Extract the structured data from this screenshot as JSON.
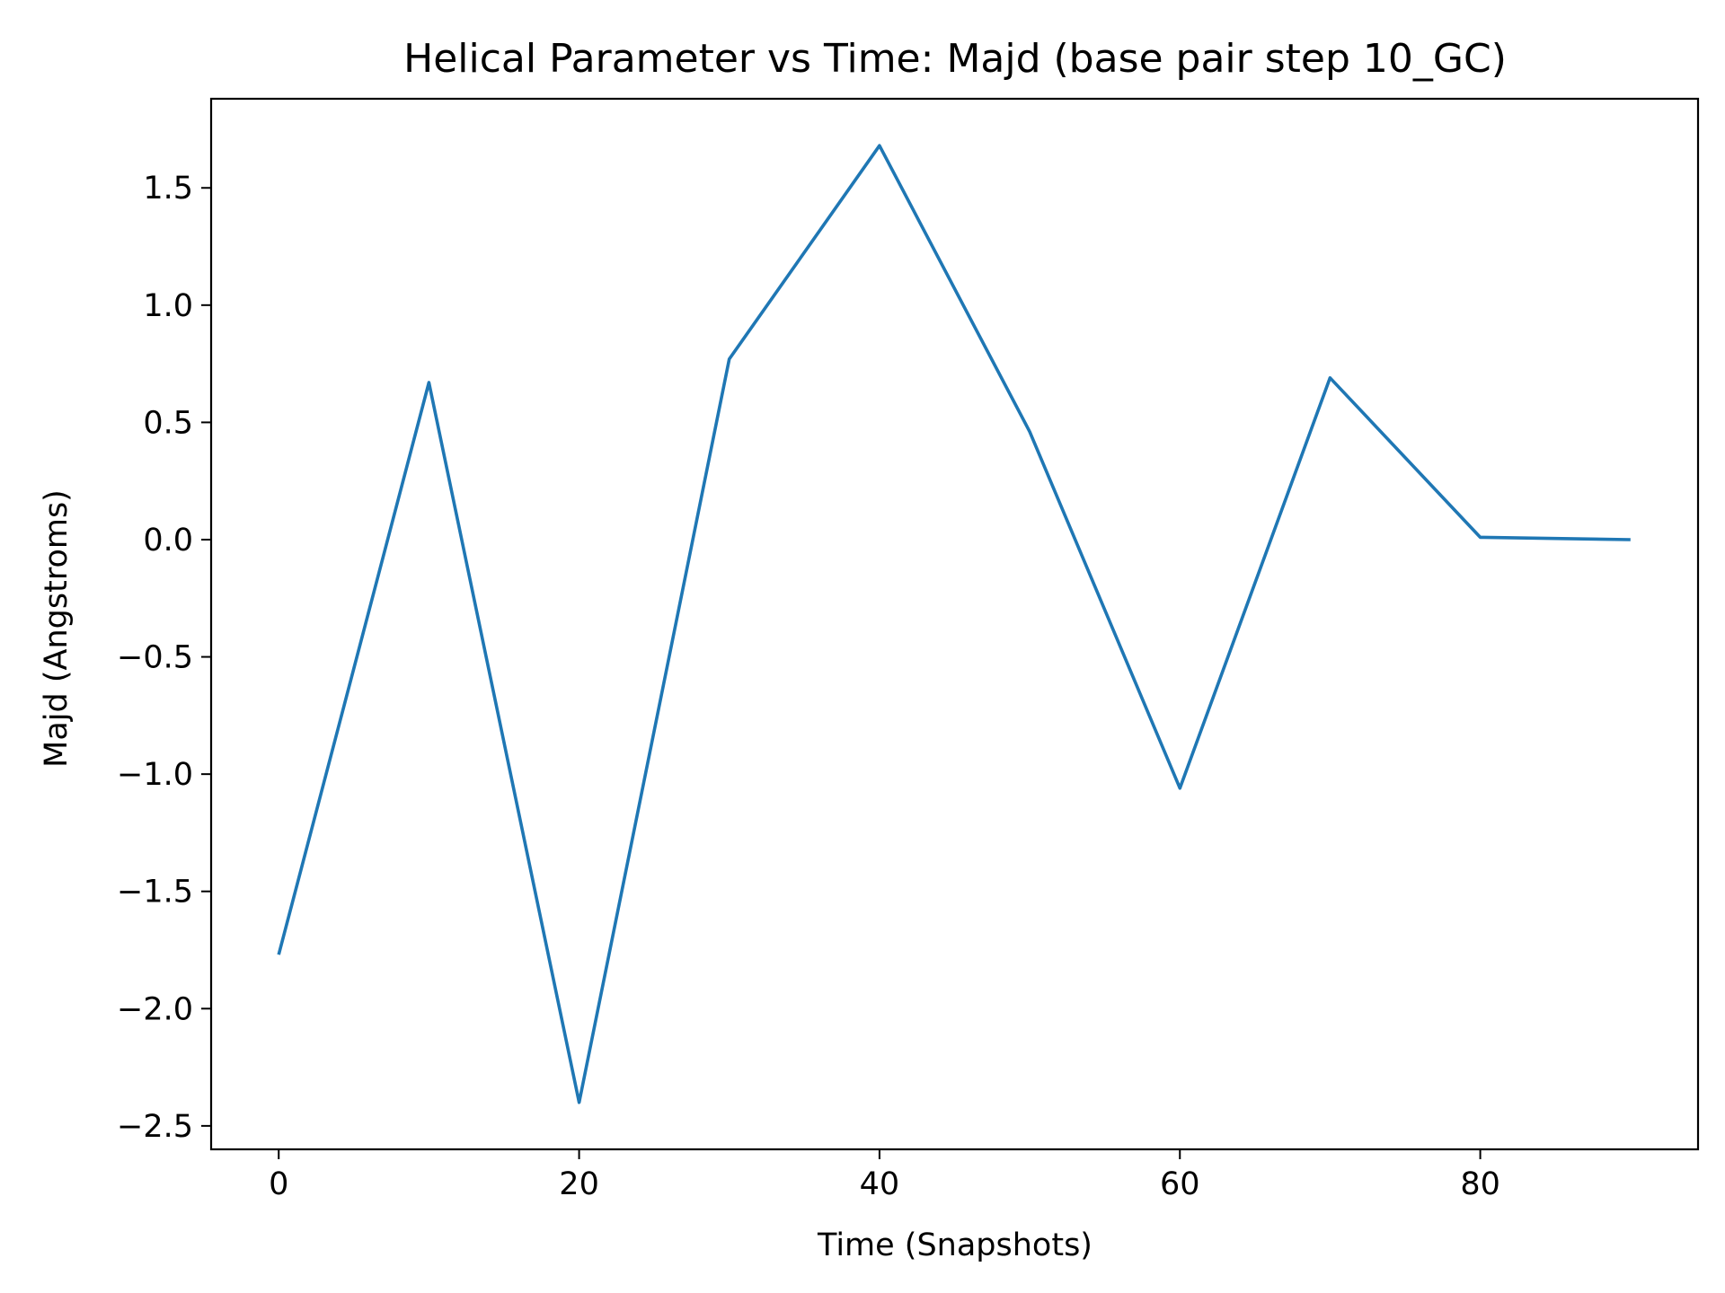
{
  "chart_data": {
    "type": "line",
    "title": "Helical Parameter vs Time: Majd (base pair step 10_GC)",
    "xlabel": "Time (Snapshots)",
    "ylabel": "Majd (Angstroms)",
    "xlim": [
      -4.5,
      94.5
    ],
    "ylim": [
      -2.6,
      1.88
    ],
    "x_ticks": [
      0,
      20,
      40,
      60,
      80
    ],
    "y_ticks": [
      -2.5,
      -2.0,
      -1.5,
      -1.0,
      -0.5,
      0.0,
      0.5,
      1.0,
      1.5
    ],
    "x_tick_labels": [
      "0",
      "20",
      "40",
      "60",
      "80"
    ],
    "y_tick_labels": [
      "−2.5",
      "−2.0",
      "−1.5",
      "−1.0",
      "−0.5",
      "0.0",
      "0.5",
      "1.0",
      "1.5"
    ],
    "grid": false,
    "series": [
      {
        "color": "#1f77b4",
        "x": [
          0,
          10,
          20,
          30,
          40,
          50,
          60,
          70,
          80,
          90
        ],
        "y": [
          -1.77,
          0.67,
          -2.4,
          0.77,
          1.68,
          0.46,
          -1.06,
          0.69,
          0.01,
          0.0
        ]
      }
    ]
  }
}
